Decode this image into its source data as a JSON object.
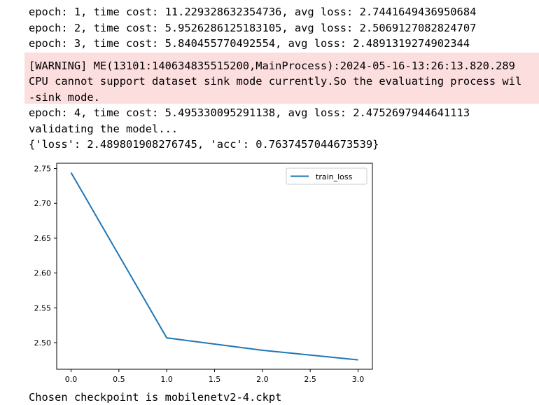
{
  "output": {
    "lines_before": [
      "epoch: 1, time cost: 11.229328632354736, avg loss: 2.7441649436950684",
      "epoch: 2, time cost: 5.9526286125183105, avg loss: 2.5069127082824707",
      "epoch: 3, time cost: 5.840455770492554, avg loss: 2.4891319274902344"
    ],
    "warning": [
      "[WARNING] ME(13101:140634835515200,MainProcess):2024-05-16-13:26:13.820.289",
      "CPU cannot support dataset sink mode currently.So the evaluating process wil",
      "-sink mode."
    ],
    "lines_after": [
      "epoch: 4, time cost: 5.495330095291138, avg loss: 2.4752697944641113",
      "validating the model...",
      "{'loss': 2.489801908276745, 'acc': 0.7637457044673539}"
    ],
    "final_line": "Chosen checkpoint is mobilenetv2-4.ckpt"
  },
  "colors": {
    "warning_background": "#fcdedf",
    "line_color": "#1f77b4"
  },
  "chart_data": {
    "type": "line",
    "x": [
      0,
      1,
      2,
      3
    ],
    "series": [
      {
        "name": "train_loss",
        "values": [
          2.7442,
          2.5069,
          2.4891,
          2.4753
        ]
      }
    ],
    "xticks": [
      "0.0",
      "0.5",
      "1.0",
      "1.5",
      "2.0",
      "2.5",
      "3.0"
    ],
    "yticks": [
      "2.50",
      "2.55",
      "2.60",
      "2.65",
      "2.70",
      "2.75"
    ],
    "xlim": [
      -0.15,
      3.15
    ],
    "ylim": [
      2.4618,
      2.7576
    ],
    "legend": "top-right",
    "grid": false
  }
}
